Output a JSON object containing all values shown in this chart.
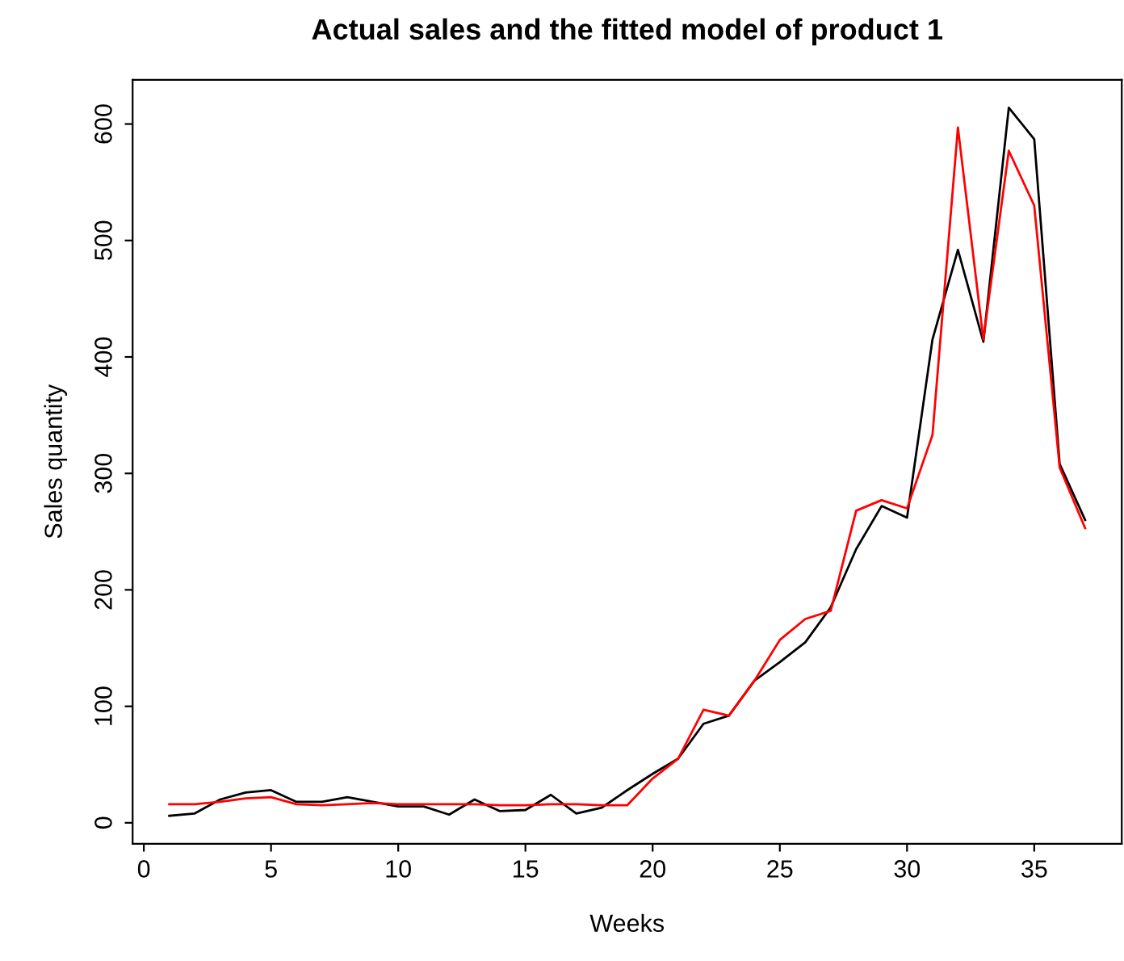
{
  "chart_data": {
    "type": "line",
    "title": "Actual sales and the fitted model of product 1",
    "xlabel": "Weeks",
    "ylabel": "Sales quantity",
    "x": [
      1,
      2,
      3,
      4,
      5,
      6,
      7,
      8,
      9,
      10,
      11,
      12,
      13,
      14,
      15,
      16,
      17,
      18,
      19,
      20,
      21,
      22,
      23,
      24,
      25,
      26,
      27,
      28,
      29,
      30,
      31,
      32,
      33,
      34,
      35,
      36,
      37
    ],
    "series": [
      {
        "color": "#000000",
        "values": [
          6,
          8,
          20,
          26,
          28,
          18,
          18,
          22,
          18,
          14,
          14,
          7,
          20,
          10,
          11,
          24,
          8,
          13,
          28,
          42,
          55,
          85,
          92,
          122,
          138,
          155,
          185,
          235,
          272,
          262,
          415,
          492,
          413,
          614,
          587,
          308,
          260
        ]
      },
      {
        "color": "#ff0000",
        "values": [
          16,
          16,
          18,
          21,
          22,
          16,
          15,
          16,
          17,
          16,
          16,
          16,
          16,
          15,
          15,
          16,
          16,
          15,
          15,
          38,
          55,
          97,
          92,
          122,
          157,
          175,
          182,
          268,
          277,
          270,
          333,
          597,
          415,
          577,
          530,
          305,
          253
        ]
      }
    ],
    "xlim": [
      -0.44,
      38.44
    ],
    "ylim": [
      -18,
      638
    ],
    "xticks": [
      0,
      5,
      10,
      15,
      20,
      25,
      30,
      35
    ],
    "yticks": [
      0,
      100,
      200,
      300,
      400,
      500,
      600
    ],
    "grid": false,
    "legend": false
  }
}
